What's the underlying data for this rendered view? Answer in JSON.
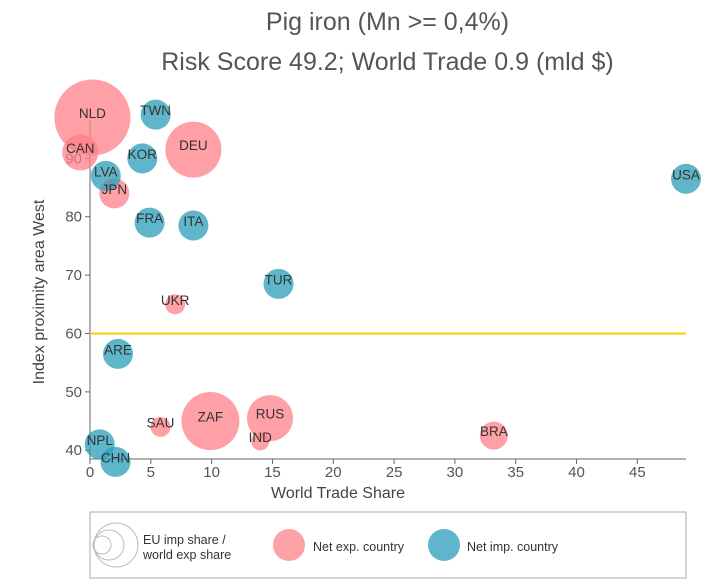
{
  "chart_data": {
    "type": "scatter",
    "title": "Pig iron (Mn >= 0,4%)",
    "subtitle": "Risk Score 49.2; World Trade 0.9 (mld $)",
    "xlabel": "World Trade Share",
    "ylabel": "Index proximity area West",
    "xlim": [
      0,
      49
    ],
    "ylim": [
      38.5,
      100
    ],
    "xticks": [
      "0",
      "5",
      "10",
      "15",
      "20",
      "25",
      "30",
      "35",
      "40",
      "45"
    ],
    "yticks": [
      "40",
      "50",
      "60",
      "70",
      "80",
      "90"
    ],
    "reference_line": {
      "y": 60,
      "color": "#f5d000"
    },
    "grid": false,
    "colors": {
      "net_exp": "#ff7f88",
      "net_imp": "#2a9db8"
    },
    "legend": {
      "placement": "bottom",
      "size_label_line1": "EU imp share /",
      "size_label_line2": "world exp share",
      "net_exp_label": "Net exp. country",
      "net_imp_label": "Net imp. country"
    },
    "points": [
      {
        "label": "NLD",
        "x": 0.2,
        "y": 97.0,
        "size": 38,
        "type": "exp"
      },
      {
        "label": "DEU",
        "x": 8.5,
        "y": 91.5,
        "size": 28,
        "type": "exp"
      },
      {
        "label": "CAN",
        "x": -0.8,
        "y": 91.0,
        "size": 18,
        "type": "exp"
      },
      {
        "label": "JPN",
        "x": 2.0,
        "y": 84.0,
        "size": 15,
        "type": "exp"
      },
      {
        "label": "UKR",
        "x": 7.0,
        "y": 65.0,
        "size": 10,
        "type": "exp"
      },
      {
        "label": "ZAF",
        "x": 9.9,
        "y": 45.0,
        "size": 29,
        "type": "exp"
      },
      {
        "label": "RUS",
        "x": 14.8,
        "y": 45.5,
        "size": 23,
        "type": "exp"
      },
      {
        "label": "SAU",
        "x": 5.8,
        "y": 44.0,
        "size": 10,
        "type": "exp"
      },
      {
        "label": "IND",
        "x": 14.0,
        "y": 41.5,
        "size": 9,
        "type": "exp"
      },
      {
        "label": "BRA",
        "x": 33.2,
        "y": 42.5,
        "size": 14,
        "type": "exp"
      },
      {
        "label": "TWN",
        "x": 5.4,
        "y": 97.5,
        "size": 15,
        "type": "imp"
      },
      {
        "label": "KOR",
        "x": 4.3,
        "y": 90.0,
        "size": 15,
        "type": "imp"
      },
      {
        "label": "LVA",
        "x": 1.3,
        "y": 87.0,
        "size": 15,
        "type": "imp"
      },
      {
        "label": "FRA",
        "x": 4.9,
        "y": 79.0,
        "size": 15,
        "type": "imp"
      },
      {
        "label": "ITA",
        "x": 8.5,
        "y": 78.5,
        "size": 15,
        "type": "imp"
      },
      {
        "label": "TUR",
        "x": 15.5,
        "y": 68.5,
        "size": 15,
        "type": "imp"
      },
      {
        "label": "ARE",
        "x": 2.3,
        "y": 56.5,
        "size": 15,
        "type": "imp"
      },
      {
        "label": "NPL",
        "x": 0.8,
        "y": 41.0,
        "size": 15,
        "type": "imp"
      },
      {
        "label": "CHN",
        "x": 2.1,
        "y": 38.0,
        "size": 15,
        "type": "imp"
      },
      {
        "label": "USA",
        "x": 49.0,
        "y": 86.5,
        "size": 15,
        "type": "imp"
      }
    ]
  }
}
